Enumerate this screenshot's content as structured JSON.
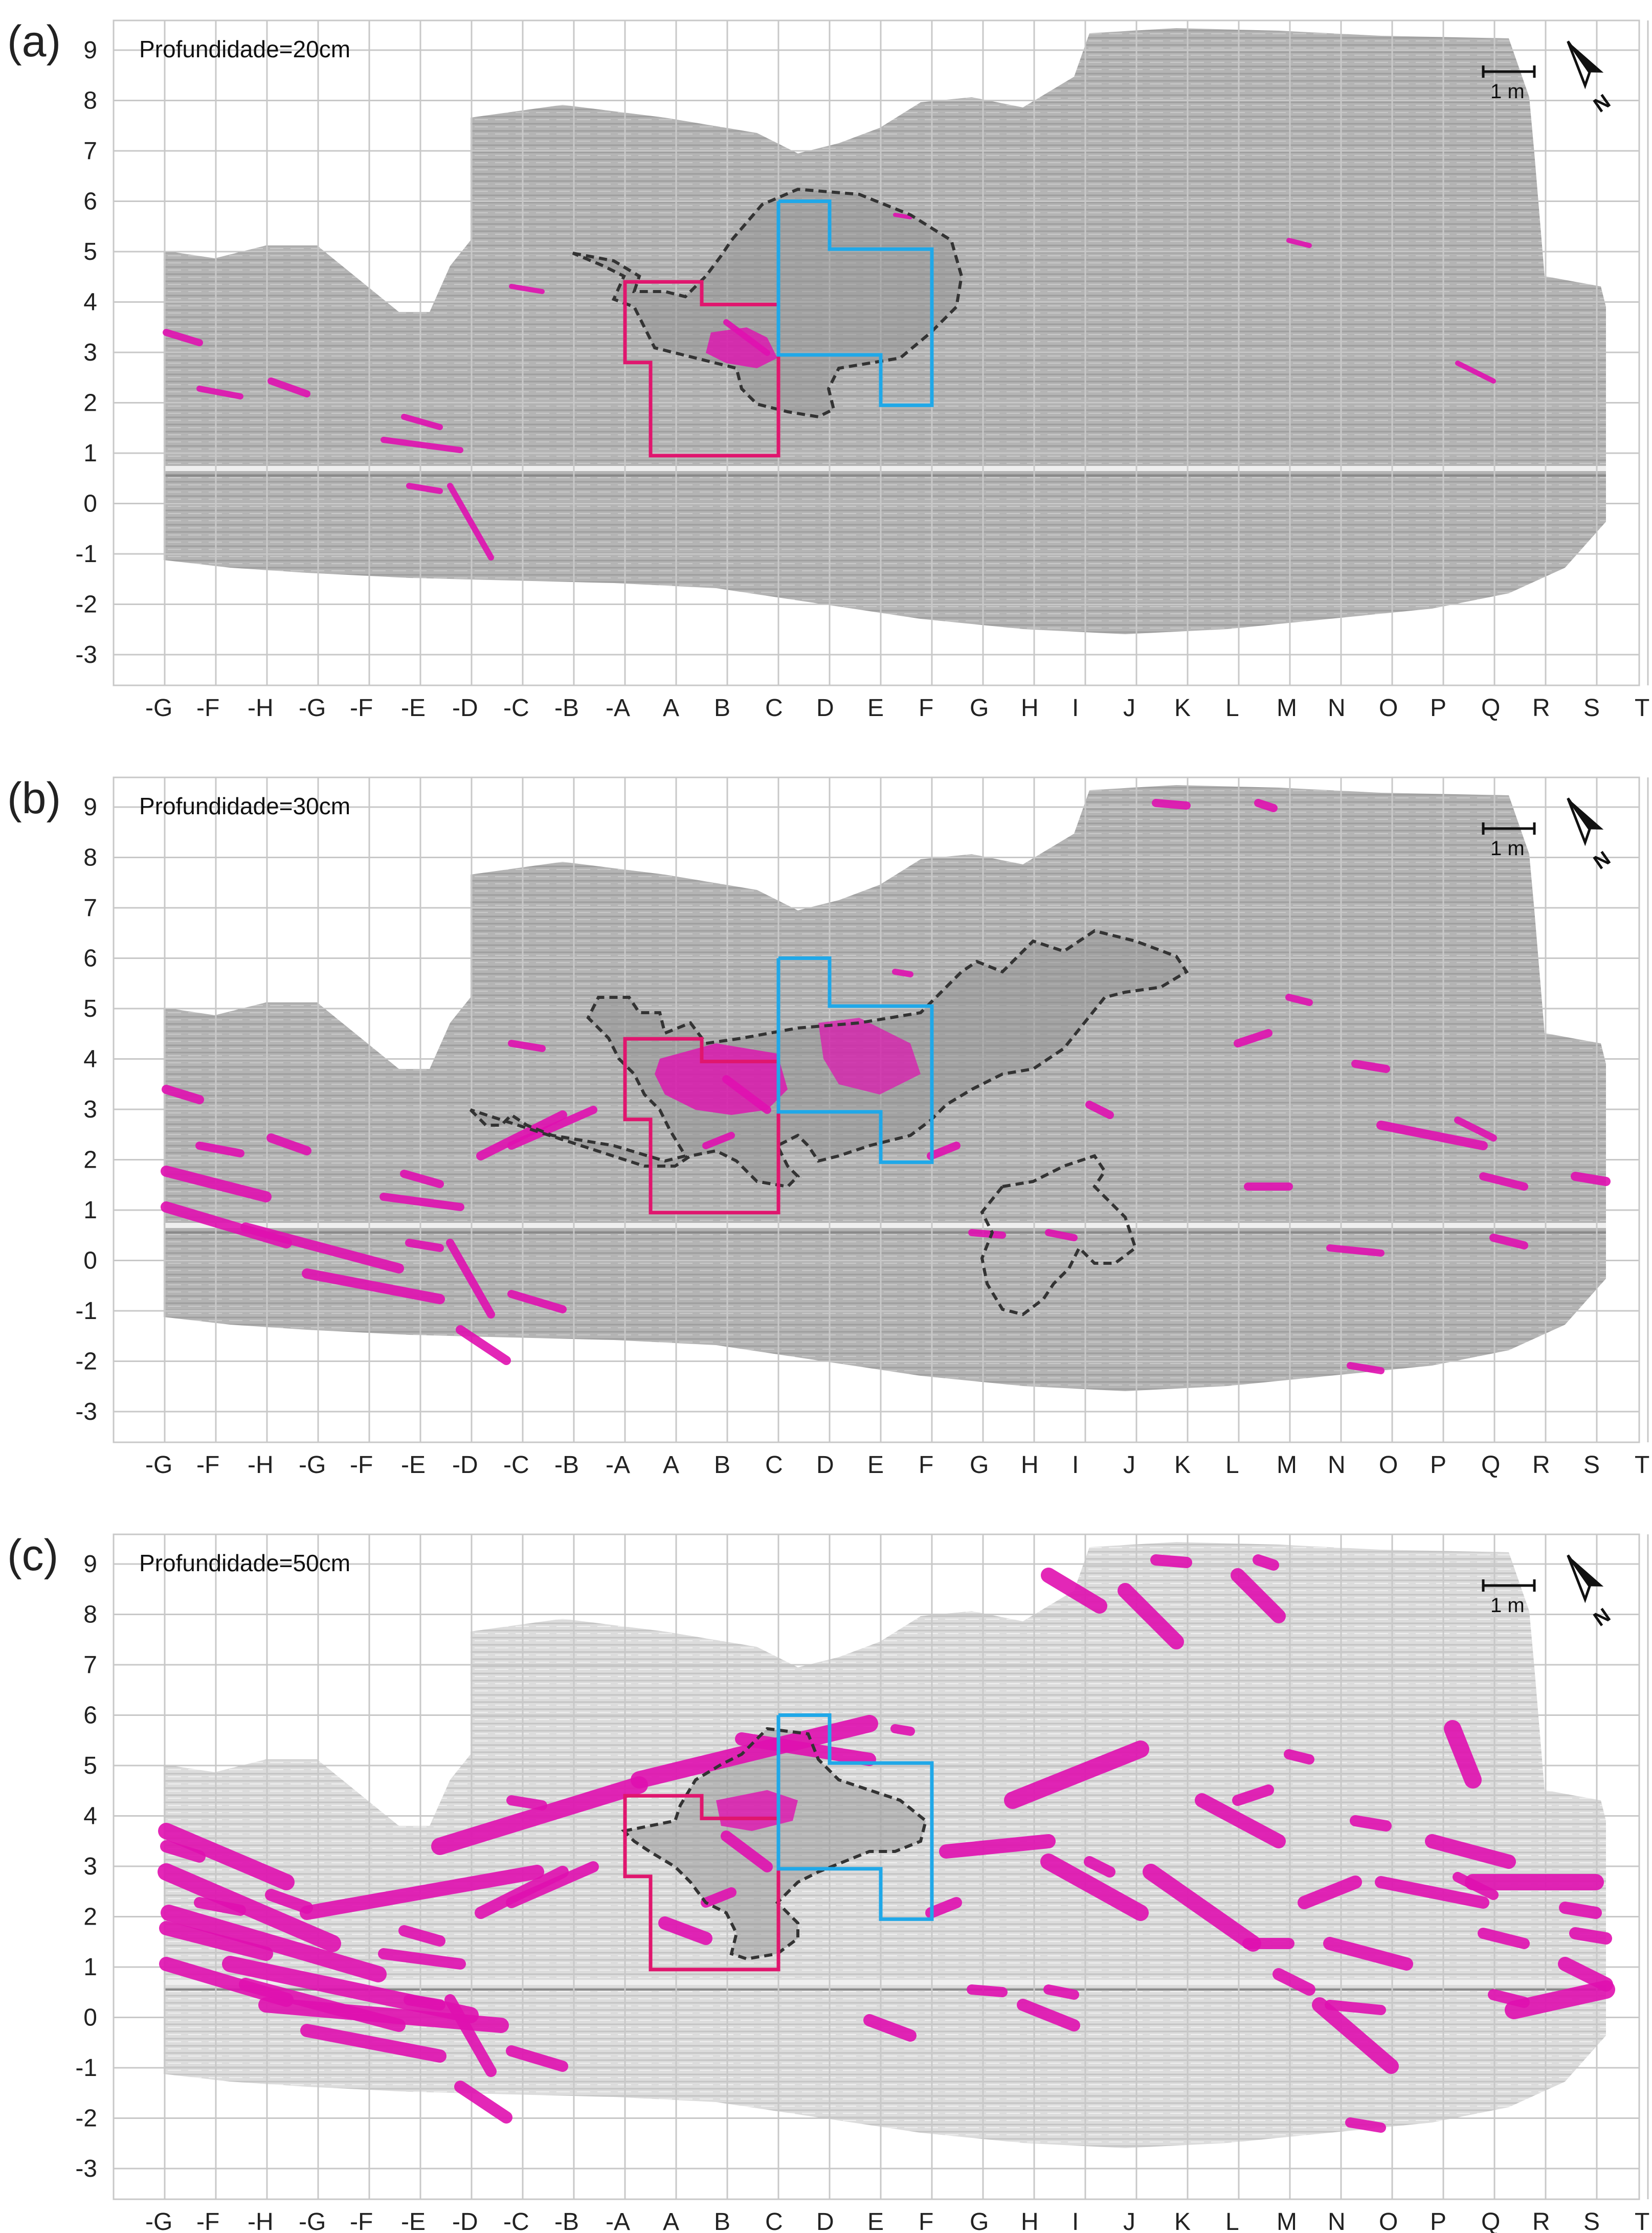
{
  "panels": [
    {
      "label": "(a)",
      "depth_label": "Profundidade=20cm",
      "magenta_level": 0.15
    },
    {
      "label": "(b)",
      "depth_label": "Profundidade=30cm",
      "magenta_level": 0.5
    },
    {
      "label": "(c)",
      "depth_label": "Profundidade=50cm",
      "magenta_level": 0.9
    }
  ],
  "x_ticks": [
    "-G",
    "-F",
    "-H",
    "-G",
    "-F",
    "-E",
    "-D",
    "-C",
    "-B",
    "-A",
    "A",
    "B",
    "C",
    "D",
    "E",
    "F",
    "G",
    "H",
    "I",
    "J",
    "K",
    "L",
    "M",
    "N",
    "O",
    "P",
    "Q",
    "R",
    "S",
    "T"
  ],
  "y_ticks": [
    "9",
    "8",
    "7",
    "6",
    "5",
    "4",
    "3",
    "2",
    "1",
    "0",
    "-1",
    "-2",
    "-3"
  ],
  "scale_bar_label": "1 m",
  "north_label": "N",
  "colors": {
    "anomaly": "#e010b0",
    "pink_outline": "#e0166e",
    "blue_outline": "#20a8e8",
    "dashed_outline": "#333333",
    "grid": "#c8c8c8",
    "background_scan": "#a8a8a8"
  }
}
